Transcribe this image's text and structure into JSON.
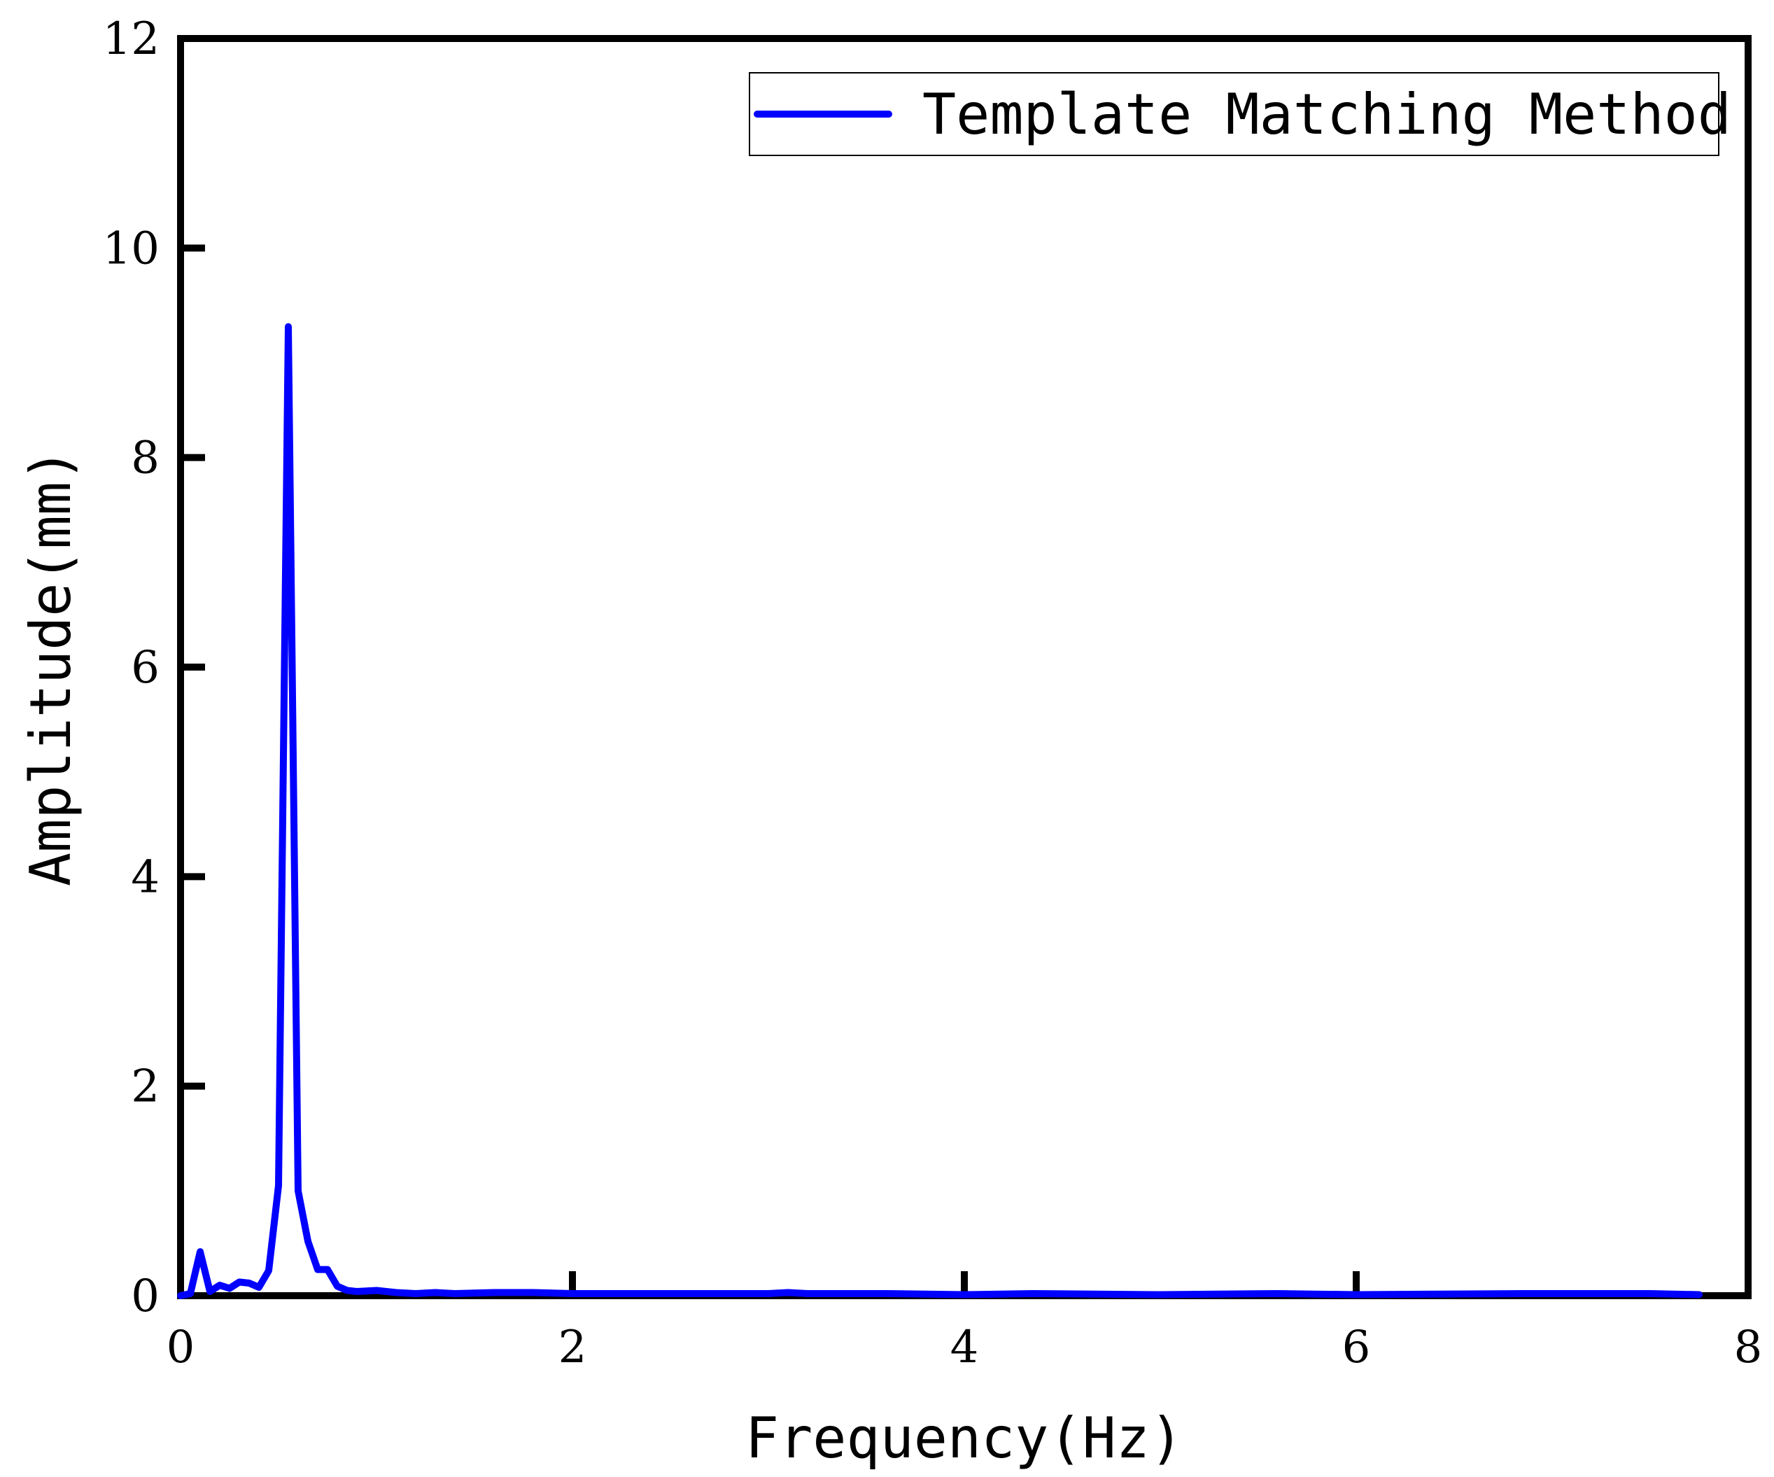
{
  "chart_data": {
    "type": "line",
    "xlabel": "Frequency(Hz)",
    "ylabel": "Amplitude(mm)",
    "xlim": [
      0,
      8
    ],
    "ylim": [
      0,
      12
    ],
    "x_ticks": [
      0,
      2,
      4,
      6,
      8
    ],
    "y_ticks": [
      0,
      2,
      4,
      6,
      8,
      10,
      12
    ],
    "grid": false,
    "legend_position": "top-right",
    "series": [
      {
        "name": "Template Matching Method",
        "color": "#0000ff",
        "x": [
          0.0,
          0.05,
          0.1,
          0.15,
          0.2,
          0.25,
          0.3,
          0.35,
          0.4,
          0.45,
          0.5,
          0.55,
          0.6,
          0.65,
          0.7,
          0.75,
          0.8,
          0.85,
          0.9,
          1.0,
          1.1,
          1.2,
          1.3,
          1.4,
          1.6,
          1.8,
          2.0,
          2.2,
          2.5,
          3.0,
          3.1,
          3.2,
          3.4,
          3.6,
          4.0,
          4.35,
          5.0,
          5.6,
          6.0,
          6.85,
          7.1,
          7.5,
          7.75
        ],
        "y": [
          0.0,
          0.02,
          0.42,
          0.04,
          0.1,
          0.07,
          0.13,
          0.12,
          0.08,
          0.24,
          1.05,
          9.25,
          1.0,
          0.52,
          0.25,
          0.25,
          0.09,
          0.05,
          0.04,
          0.05,
          0.03,
          0.02,
          0.03,
          0.02,
          0.03,
          0.03,
          0.02,
          0.02,
          0.02,
          0.02,
          0.03,
          0.02,
          0.02,
          0.02,
          0.01,
          0.02,
          0.01,
          0.02,
          0.01,
          0.02,
          0.02,
          0.02,
          0.01
        ]
      }
    ]
  }
}
